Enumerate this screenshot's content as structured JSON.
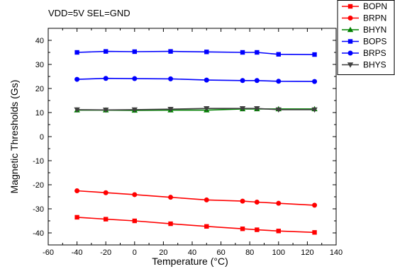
{
  "chart_data": {
    "type": "line",
    "annotation": "VDD=5V SEL=GND",
    "xlabel": "Temperature (°C)",
    "ylabel": "Magnetic Thresholds (Gs)",
    "xlim": [
      -60,
      140
    ],
    "ylim": [
      -45,
      45
    ],
    "xticks": [
      -60,
      -40,
      -20,
      0,
      20,
      40,
      60,
      80,
      100,
      120,
      140
    ],
    "yticks": [
      -40,
      -30,
      -20,
      -10,
      0,
      10,
      20,
      30,
      40
    ],
    "grid": false,
    "legend_position": "top-right-outside",
    "x": [
      -40,
      -20,
      0,
      25,
      50,
      75,
      85,
      100,
      125
    ],
    "series": [
      {
        "name": "BOPN",
        "color": "#ff0000",
        "marker": "square",
        "values": [
          -33.5,
          -34.3,
          -35.0,
          -36.2,
          -37.3,
          -38.3,
          -38.7,
          -39.2,
          -39.8
        ]
      },
      {
        "name": "BRPN",
        "color": "#ff0000",
        "marker": "circle",
        "values": [
          -22.5,
          -23.3,
          -24.1,
          -25.2,
          -26.3,
          -26.8,
          -27.2,
          -27.7,
          -28.5
        ]
      },
      {
        "name": "BHYN",
        "color": "#008000",
        "marker": "triangle",
        "values": [
          11.0,
          11.0,
          10.9,
          11.0,
          11.0,
          11.5,
          11.5,
          11.5,
          11.5
        ]
      },
      {
        "name": "BOPS",
        "color": "#0000ff",
        "marker": "square",
        "values": [
          35.0,
          35.4,
          35.3,
          35.4,
          35.2,
          35.0,
          35.0,
          34.2,
          34.1
        ]
      },
      {
        "name": "BRPS",
        "color": "#0000ff",
        "marker": "circle",
        "values": [
          23.8,
          24.2,
          24.1,
          24.0,
          23.5,
          23.3,
          23.3,
          23.0,
          22.9
        ]
      },
      {
        "name": "BHYS",
        "color": "#404040",
        "marker": "triangle-down",
        "values": [
          11.2,
          11.1,
          11.2,
          11.4,
          11.7,
          11.7,
          11.7,
          11.2,
          11.2
        ]
      }
    ]
  }
}
